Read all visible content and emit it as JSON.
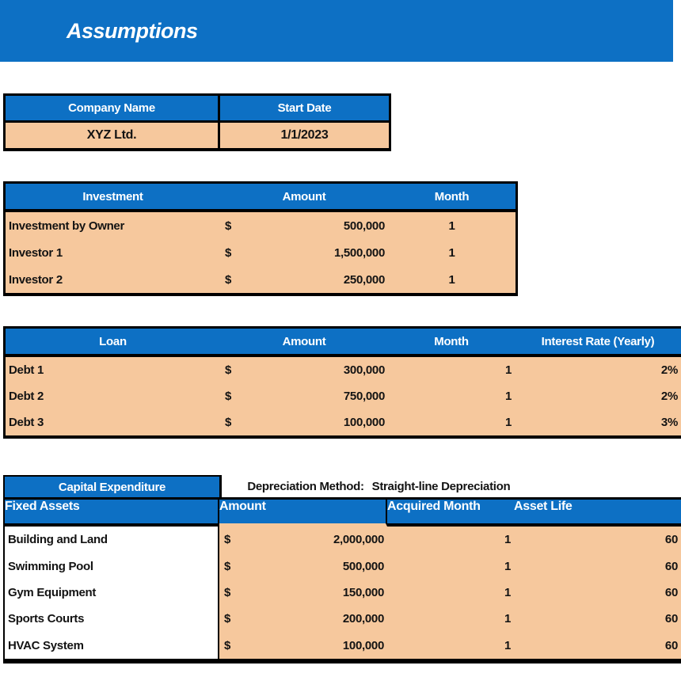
{
  "title": "Assumptions",
  "colors": {
    "header_blue": "#0d70c4",
    "row_peach": "#f6c89d",
    "border_black": "#000000",
    "header_text": "#ffffff",
    "data_text": "#131313"
  },
  "company_table": {
    "headers": [
      "Company Name",
      "Start Date"
    ],
    "company_name": "XYZ Ltd.",
    "start_date": "1/1/2023"
  },
  "investment_table": {
    "headers": [
      "Investment",
      "Amount",
      "Month"
    ],
    "rows": [
      {
        "label": "Investment by Owner",
        "currency": "$",
        "amount": "500,000",
        "month": "1"
      },
      {
        "label": "Investor 1",
        "currency": "$",
        "amount": "1,500,000",
        "month": "1"
      },
      {
        "label": "Investor 2",
        "currency": "$",
        "amount": "250,000",
        "month": "1"
      }
    ]
  },
  "loan_table": {
    "headers": [
      "Loan",
      "Amount",
      "Month",
      "Interest Rate (Yearly)"
    ],
    "rows": [
      {
        "label": "Debt 1",
        "currency": "$",
        "amount": "300,000",
        "month": "1",
        "rate": "2%"
      },
      {
        "label": "Debt 2",
        "currency": "$",
        "amount": "750,000",
        "month": "1",
        "rate": "2%"
      },
      {
        "label": "Debt 3",
        "currency": "$",
        "amount": "100,000",
        "month": "1",
        "rate": "3%"
      }
    ]
  },
  "capex_table": {
    "section_label": "Capital Expenditure",
    "depreciation_label": "Depreciation Method:",
    "depreciation_value": "Straight-line Depreciation",
    "headers": [
      "Fixed Assets",
      "Amount",
      "Acquired Month",
      "Asset Life"
    ],
    "rows": [
      {
        "label": "Building and Land",
        "currency": "$",
        "amount": "2,000,000",
        "month": "1",
        "life": "60"
      },
      {
        "label": "Swimming Pool",
        "currency": "$",
        "amount": "500,000",
        "month": "1",
        "life": "60"
      },
      {
        "label": "Gym Equipment",
        "currency": "$",
        "amount": "150,000",
        "month": "1",
        "life": "60"
      },
      {
        "label": "Sports Courts",
        "currency": "$",
        "amount": "200,000",
        "month": "1",
        "life": "60"
      },
      {
        "label": "HVAC System",
        "currency": "$",
        "amount": "100,000",
        "month": "1",
        "life": "60"
      }
    ]
  }
}
